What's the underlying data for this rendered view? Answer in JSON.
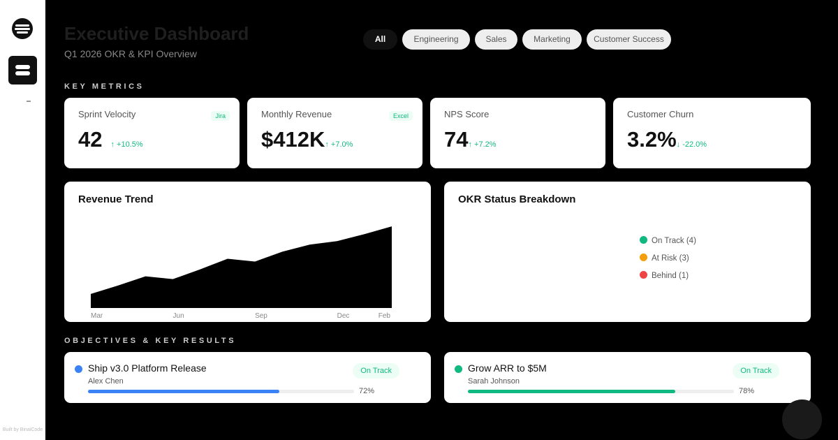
{
  "sidebar": {
    "footer": "Built by BinaiCode"
  },
  "header": {
    "title": "Executive Dashboard",
    "subtitle": "Q1 2026 OKR & KPI Overview"
  },
  "filters": [
    "All",
    "Engineering",
    "Sales",
    "Marketing",
    "Customer Success"
  ],
  "metrics_heading": "KEY METRICS",
  "metrics": [
    {
      "name": "Sprint Velocity",
      "value": "42",
      "change": "↑ +10.5%",
      "badge": "Jira"
    },
    {
      "name": "Monthly Revenue",
      "value": "$412K",
      "change": "↑ +7.0%",
      "badge": "Excel"
    },
    {
      "name": "NPS Score",
      "value": "74",
      "change": "↑ +7.2%"
    },
    {
      "name": "Customer Churn",
      "value": "3.2%",
      "change": "↓ -22.0%"
    }
  ],
  "chart_data": {
    "type": "area",
    "title": "Revenue Trend",
    "categories": [
      "Mar",
      null,
      null,
      "Jun",
      null,
      null,
      "Sep",
      null,
      null,
      "Dec",
      null,
      "Feb"
    ],
    "values": [
      20,
      32,
      45,
      41,
      55,
      70,
      66,
      80,
      90,
      95,
      105,
      116
    ],
    "color": "#000000",
    "ylim": [
      0,
      130
    ]
  },
  "okr_status": {
    "title": "OKR Status Breakdown",
    "legend": [
      {
        "label": "On Track (4)",
        "color": "#10b981"
      },
      {
        "label": "At Risk (3)",
        "color": "#f59e0b"
      },
      {
        "label": "Behind (1)",
        "color": "#ef4444"
      }
    ]
  },
  "okr_heading": "OBJECTIVES & KEY RESULTS",
  "okrs": [
    {
      "title": "Ship v3.0 Platform Release",
      "owner": "Alex Chen",
      "status": "On Track",
      "progress": 72,
      "progress_label": "72%",
      "color": "#3b82f6"
    },
    {
      "title": "Grow ARR to $5M",
      "owner": "Sarah Johnson",
      "status": "On Track",
      "progress": 78,
      "progress_label": "78%",
      "color": "#10b981"
    }
  ]
}
